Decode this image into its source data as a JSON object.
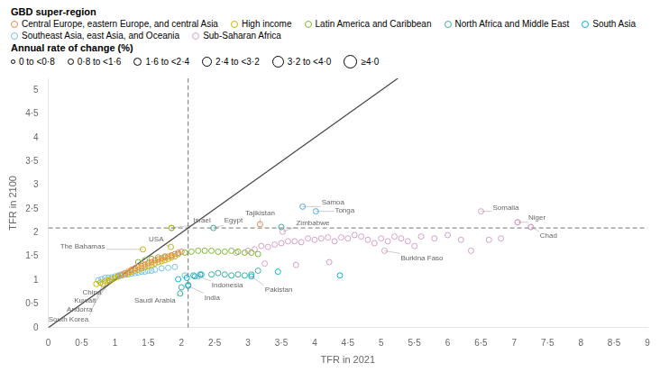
{
  "chart_data": {
    "type": "scatter",
    "x_label": "TFR in 2021",
    "y_label": "TFR in 2100",
    "xlim": [
      0,
      9.0
    ],
    "ylim": [
      0,
      5.25
    ],
    "xticks": [
      0,
      {
        "value": 0.5,
        "label": "0·5"
      },
      1,
      {
        "value": 1.5,
        "label": "1·5"
      },
      2,
      {
        "value": 2.5,
        "label": "2·5"
      },
      3,
      {
        "value": 3.5,
        "label": "3·5"
      },
      4,
      {
        "value": 4.5,
        "label": "4·5"
      },
      5,
      {
        "value": 5.5,
        "label": "5·5"
      },
      6,
      {
        "value": 6.5,
        "label": "6·5"
      },
      7,
      {
        "value": 7.5,
        "label": "7·5"
      },
      8,
      {
        "value": 8.5,
        "label": "8·5"
      },
      9
    ],
    "yticks": [
      0,
      {
        "value": 0.5,
        "label": "0·5"
      },
      1,
      {
        "value": 1.5,
        "label": "1·5"
      },
      2,
      {
        "value": 2.5,
        "label": "2·5"
      },
      3,
      {
        "value": 3.5,
        "label": "3·5"
      },
      4,
      {
        "value": 4.5,
        "label": "4·5"
      },
      5
    ],
    "grid": false,
    "legend": "top",
    "legend_title": "GBD super-region",
    "marker": "circle",
    "series": [
      {
        "name": "Central Europe, eastern Europe, and central Asia",
        "color": "#e8874a",
        "values": [
          [
            1.05,
            1.08
          ],
          [
            1.1,
            1.12
          ],
          [
            1.15,
            1.15
          ],
          [
            1.2,
            1.18
          ],
          [
            1.25,
            1.22
          ],
          [
            1.3,
            1.25
          ],
          [
            1.35,
            1.28
          ],
          [
            1.4,
            1.3
          ],
          [
            1.45,
            1.33
          ],
          [
            1.5,
            1.36
          ],
          [
            1.55,
            1.38
          ],
          [
            1.6,
            1.42
          ],
          [
            1.65,
            1.44
          ],
          [
            1.7,
            1.46
          ],
          [
            1.75,
            1.48
          ],
          [
            1.8,
            1.5
          ],
          [
            1.85,
            1.52
          ],
          [
            1.9,
            1.55
          ],
          [
            1.95,
            1.58
          ],
          [
            2.0,
            1.6
          ]
        ]
      },
      {
        "name": "High income",
        "color": "#c8b400",
        "values": [
          [
            0.72,
            0.92
          ],
          [
            0.78,
            0.95
          ],
          [
            0.85,
            0.98
          ],
          [
            0.9,
            1.0
          ],
          [
            0.95,
            1.02
          ],
          [
            1.0,
            1.05
          ],
          [
            1.05,
            1.08
          ],
          [
            1.1,
            1.1
          ],
          [
            1.15,
            1.12
          ],
          [
            1.2,
            1.15
          ],
          [
            1.25,
            1.18
          ],
          [
            1.3,
            1.2
          ],
          [
            1.35,
            1.22
          ],
          [
            1.4,
            1.25
          ],
          [
            1.45,
            1.28
          ],
          [
            1.5,
            1.3
          ],
          [
            1.55,
            1.32
          ],
          [
            1.6,
            1.35
          ],
          [
            1.65,
            1.38
          ],
          [
            1.7,
            1.4
          ],
          [
            1.75,
            1.42
          ],
          [
            1.8,
            1.45
          ],
          [
            1.85,
            1.48
          ],
          [
            1.9,
            1.5
          ]
        ]
      },
      {
        "name": "Latin America and Caribbean",
        "color": "#7db832",
        "values": [
          [
            1.35,
            1.38
          ],
          [
            1.45,
            1.42
          ],
          [
            1.55,
            1.45
          ],
          [
            1.65,
            1.48
          ],
          [
            1.75,
            1.5
          ],
          [
            1.85,
            1.52
          ],
          [
            1.95,
            1.55
          ],
          [
            2.05,
            1.58
          ],
          [
            2.15,
            1.6
          ],
          [
            2.25,
            1.62
          ],
          [
            2.35,
            1.62
          ],
          [
            2.45,
            1.62
          ],
          [
            2.55,
            1.6
          ],
          [
            2.65,
            1.6
          ],
          [
            2.75,
            1.62
          ],
          [
            2.85,
            1.6
          ],
          [
            2.95,
            1.58
          ],
          [
            3.05,
            1.58
          ],
          [
            3.15,
            1.55
          ]
        ]
      },
      {
        "name": "North Africa and Middle East",
        "color": "#3ab0a0",
        "values": [
          [
            1.85,
            2.1
          ],
          [
            2.0,
            0.85
          ],
          [
            2.1,
            0.9
          ],
          [
            2.2,
            1.08
          ],
          [
            2.3,
            1.12
          ],
          [
            2.45,
            1.12
          ],
          [
            2.55,
            1.15
          ],
          [
            2.65,
            1.12
          ],
          [
            2.75,
            1.1
          ],
          [
            2.85,
            1.12
          ],
          [
            2.95,
            1.1
          ],
          [
            3.05,
            1.12
          ],
          [
            3.15,
            1.2
          ],
          [
            3.5,
            2.12
          ]
        ]
      },
      {
        "name": "South Asia",
        "color": "#00b4d8",
        "values": [
          [
            1.95,
            1.02
          ],
          [
            2.08,
            1.05
          ],
          [
            2.18,
            1.1
          ],
          [
            2.28,
            1.12
          ],
          [
            3.45,
            1.18
          ],
          [
            4.38,
            1.1
          ]
        ]
      },
      {
        "name": "Southeast Asia, east Asia, and Oceania",
        "color": "#7bbfea",
        "values": [
          [
            0.75,
            1.0
          ],
          [
            0.8,
            1.02
          ],
          [
            0.85,
            1.05
          ],
          [
            0.9,
            1.05
          ],
          [
            0.95,
            1.06
          ],
          [
            1.0,
            1.08
          ],
          [
            1.05,
            1.1
          ],
          [
            1.1,
            1.1
          ],
          [
            1.15,
            1.12
          ],
          [
            1.2,
            1.12
          ],
          [
            1.25,
            1.14
          ],
          [
            1.3,
            1.15
          ],
          [
            1.35,
            1.16
          ],
          [
            1.4,
            1.18
          ],
          [
            1.45,
            1.18
          ],
          [
            1.5,
            1.2
          ],
          [
            1.55,
            1.2
          ],
          [
            1.6,
            1.22
          ],
          [
            1.7,
            1.25
          ],
          [
            1.8,
            1.26
          ],
          [
            1.9,
            1.28
          ],
          [
            2.05,
            1.1
          ],
          [
            3.82,
            2.55
          ],
          [
            4.02,
            2.45
          ]
        ]
      },
      {
        "name": "Sub-Saharan Africa",
        "color": "#d4a0c8",
        "values": [
          [
            2.82,
            1.58
          ],
          [
            3.0,
            1.62
          ],
          [
            3.1,
            1.65
          ],
          [
            3.2,
            1.72
          ],
          [
            3.3,
            1.7
          ],
          [
            3.4,
            1.75
          ],
          [
            3.5,
            1.78
          ],
          [
            3.6,
            1.82
          ],
          [
            3.7,
            1.82
          ],
          [
            3.8,
            1.8
          ],
          [
            3.9,
            1.88
          ],
          [
            4.0,
            1.85
          ],
          [
            4.1,
            1.88
          ],
          [
            4.2,
            1.9
          ],
          [
            4.3,
            1.82
          ],
          [
            4.4,
            1.9
          ],
          [
            4.5,
            1.88
          ],
          [
            4.6,
            1.95
          ],
          [
            4.7,
            1.92
          ],
          [
            4.8,
            1.85
          ],
          [
            4.9,
            1.78
          ],
          [
            5.0,
            1.88
          ],
          [
            5.1,
            1.82
          ],
          [
            5.2,
            1.92
          ],
          [
            5.3,
            1.88
          ],
          [
            5.4,
            1.82
          ],
          [
            5.5,
            1.72
          ],
          [
            5.6,
            1.92
          ],
          [
            5.8,
            1.88
          ],
          [
            6.0,
            1.95
          ],
          [
            6.2,
            1.85
          ],
          [
            6.35,
            1.62
          ],
          [
            6.62,
            1.85
          ],
          [
            6.8,
            1.88
          ],
          [
            7.05,
            2.22
          ],
          [
            7.25,
            2.12
          ],
          [
            3.25,
            1.35
          ],
          [
            3.72,
            1.32
          ],
          [
            4.22,
            1.38
          ]
        ]
      }
    ],
    "annotations": [
      {
        "text": "South Korea",
        "x": 0.82,
        "y": 0.92,
        "color": "#c8b400"
      },
      {
        "text": "Andorra",
        "x": 0.92,
        "y": 0.98,
        "color": "#c8b400"
      },
      {
        "text": "Kuwait",
        "x": 1.05,
        "y": 1.08,
        "color": "#c8b400"
      },
      {
        "text": "China",
        "x": 1.08,
        "y": 1.1,
        "color": "#7bbfea"
      },
      {
        "text": "The Bahamas",
        "x": 1.42,
        "y": 1.65,
        "color": "#c8b400"
      },
      {
        "text": "USA",
        "x": 1.84,
        "y": 1.7,
        "color": "#c8b400"
      },
      {
        "text": "Saudi Arabia",
        "x": 1.98,
        "y": 0.72,
        "color": "#3ab0a0"
      },
      {
        "text": "India",
        "x": 2.1,
        "y": 0.88,
        "color": "#00b4d8"
      },
      {
        "text": "Indonesia",
        "x": 2.25,
        "y": 1.08,
        "color": "#7bbfea"
      },
      {
        "text": "Pakistan",
        "x": 3.05,
        "y": 1.08,
        "color": "#00b4d8"
      },
      {
        "text": "Israel",
        "x": 1.85,
        "y": 2.1,
        "color": "#c8b400"
      },
      {
        "text": "Egypt",
        "x": 2.48,
        "y": 2.1,
        "color": "#3ab0a0"
      },
      {
        "text": "Tajikistan",
        "x": 3.18,
        "y": 2.18,
        "color": "#e8874a"
      },
      {
        "text": "Zimbabwe",
        "x": 3.52,
        "y": 2.02,
        "color": "#d4a0c8"
      },
      {
        "text": "Samoa",
        "x": 3.82,
        "y": 2.55,
        "color": "#7bbfea"
      },
      {
        "text": "Tonga",
        "x": 4.02,
        "y": 2.45,
        "color": "#7bbfea"
      },
      {
        "text": "Burkina Faso",
        "x": 5.05,
        "y": 1.62,
        "color": "#d4a0c8"
      },
      {
        "text": "Somalia",
        "x": 6.5,
        "y": 2.45,
        "color": "#d4a0c8"
      },
      {
        "text": "Niger",
        "x": 7.05,
        "y": 2.22,
        "color": "#d4a0c8"
      },
      {
        "text": "Chad",
        "x": 7.25,
        "y": 2.12,
        "color": "#d4a0c8"
      }
    ],
    "diagonal": {
      "x": [
        0,
        5.25
      ],
      "y": [
        0,
        5.25
      ],
      "color": "#444444",
      "line_style": "solid"
    },
    "hline": {
      "y": 2.1,
      "color": "#777777",
      "line_style": "dashed"
    },
    "vline": {
      "x": 2.1,
      "color": "#777777",
      "line_style": "dashed"
    },
    "size_legend": {
      "title": "Annual rate of change (%)",
      "labels": [
        "0 to <0·8",
        "0·8 to <1·6",
        "1·6 to <2·4",
        "2·4 to <3·2",
        "3·2 to <4·0",
        "≥4·0"
      ]
    }
  }
}
